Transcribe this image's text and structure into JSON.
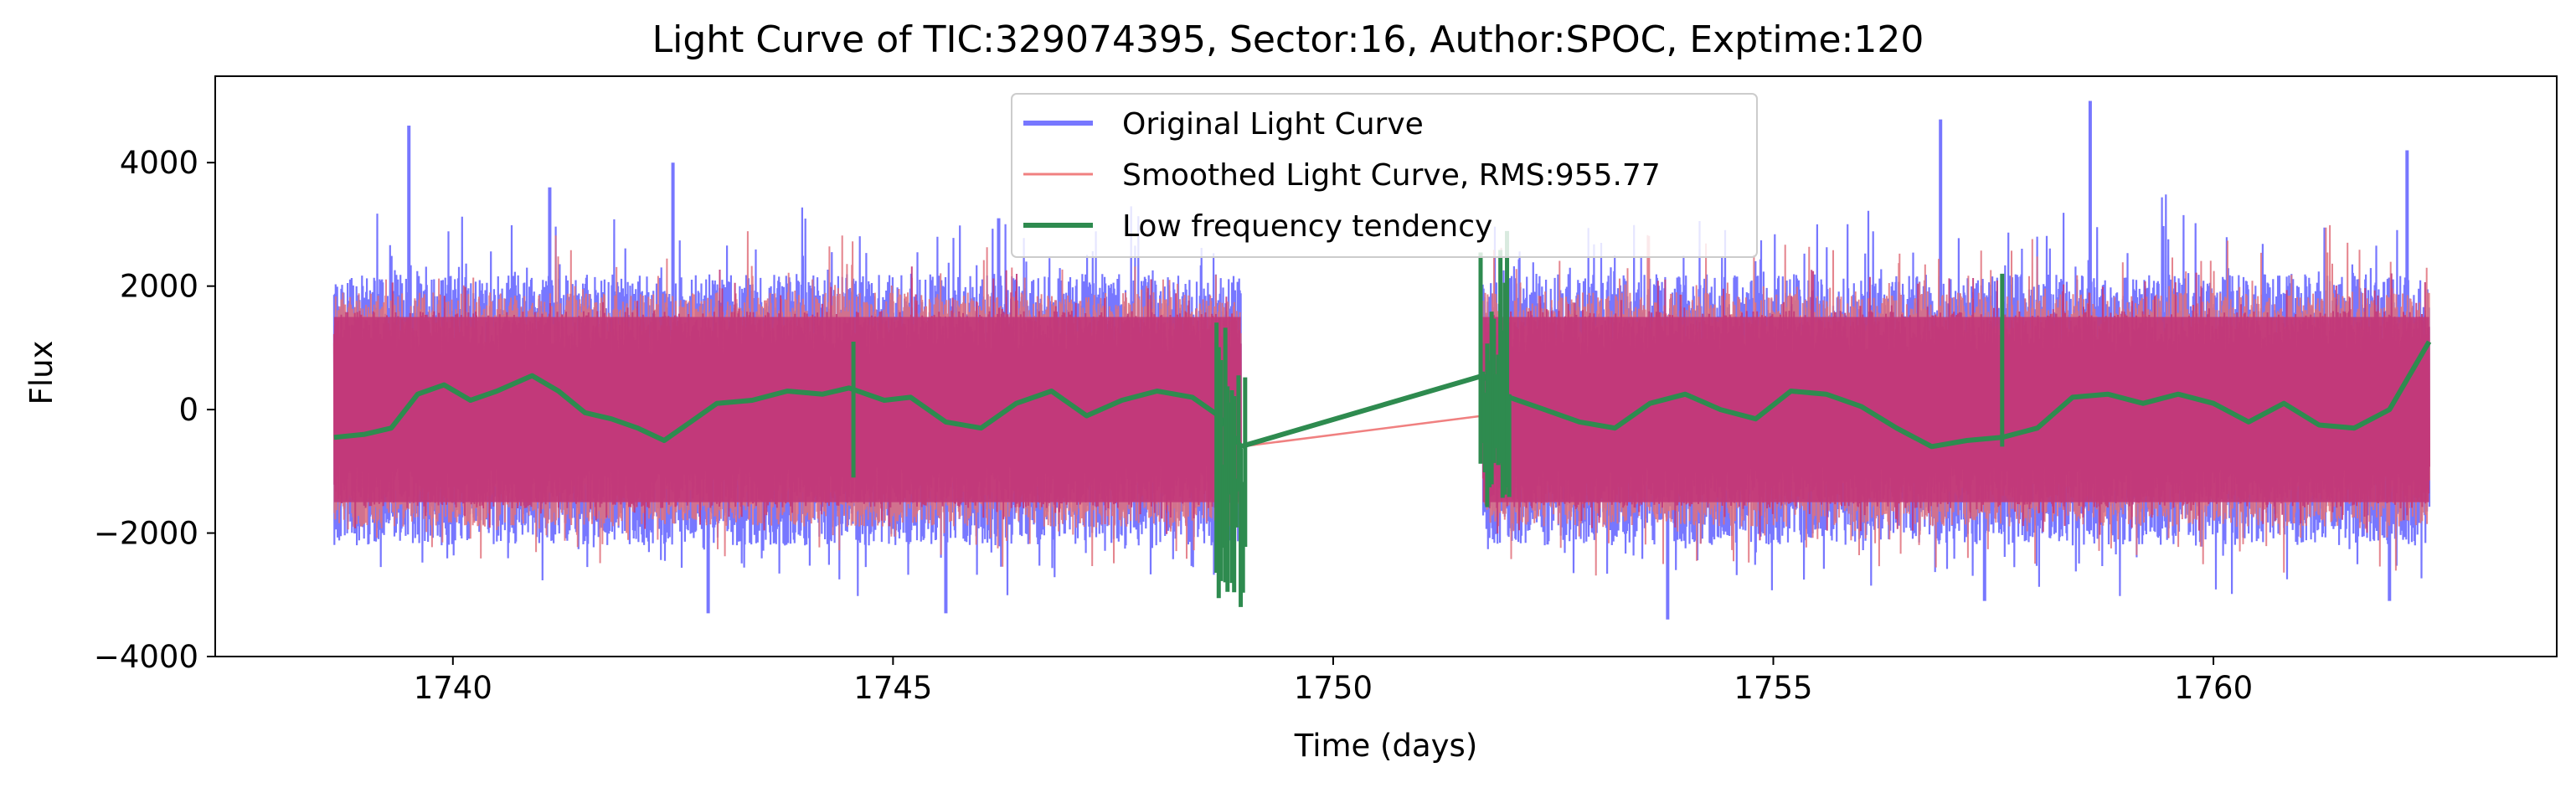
{
  "chart_data": {
    "type": "line",
    "title": "Light Curve of TIC:329074395, Sector:16, Author:SPOC, Exptime:120",
    "xlabel": "Time (days)",
    "ylabel": "Flux",
    "xlim": [
      1737.3,
      1763.9
    ],
    "ylim": [
      -4000,
      5400
    ],
    "x_ticks": [
      1740,
      1745,
      1750,
      1755,
      1760
    ],
    "y_ticks": [
      -4000,
      -2000,
      0,
      2000,
      4000
    ],
    "grid": false,
    "legend_placement": "top-center",
    "segments": [
      [
        1738.65,
        1748.95
      ],
      [
        1751.7,
        1762.45
      ]
    ],
    "series": [
      {
        "name": "Original Light Curve",
        "color": "#7777ff",
        "kind": "noisy-band",
        "center": 0,
        "envelope_low": -2200,
        "envelope_high": 2200,
        "peaks": [
          {
            "x": 1739.5,
            "y": 4600
          },
          {
            "x": 1741.1,
            "y": 3600
          },
          {
            "x": 1742.5,
            "y": 4000
          },
          {
            "x": 1746.2,
            "y": 3100
          },
          {
            "x": 1756.9,
            "y": 4700
          },
          {
            "x": 1758.6,
            "y": 5000
          },
          {
            "x": 1762.2,
            "y": 4200
          }
        ],
        "troughs": [
          {
            "x": 1742.9,
            "y": -3300
          },
          {
            "x": 1745.6,
            "y": -3300
          },
          {
            "x": 1753.8,
            "y": -3400
          },
          {
            "x": 1757.4,
            "y": -3100
          },
          {
            "x": 1762.0,
            "y": -3100
          }
        ]
      },
      {
        "name": "Smoothed Light Curve, RMS:955.77",
        "color": "#f08080",
        "kind": "noisy-band",
        "gap_line": [
          {
            "x": 1748.95,
            "y": -600
          },
          {
            "x": 1751.7,
            "y": -100
          }
        ]
      },
      {
        "name": "Low frequency tendency",
        "color": "#2e8b4f",
        "kind": "trend",
        "points": [
          [
            1738.65,
            -450
          ],
          [
            1739.0,
            -400
          ],
          [
            1739.3,
            -300
          ],
          [
            1739.6,
            250
          ],
          [
            1739.9,
            400
          ],
          [
            1740.2,
            150
          ],
          [
            1740.5,
            300
          ],
          [
            1740.9,
            550
          ],
          [
            1741.2,
            300
          ],
          [
            1741.5,
            -50
          ],
          [
            1741.8,
            -150
          ],
          [
            1742.1,
            -300
          ],
          [
            1742.4,
            -500
          ],
          [
            1742.7,
            -200
          ],
          [
            1743.0,
            100
          ],
          [
            1743.4,
            150
          ],
          [
            1743.8,
            300
          ],
          [
            1744.2,
            250
          ],
          [
            1744.5,
            350
          ],
          [
            1744.9,
            150
          ],
          [
            1745.2,
            200
          ],
          [
            1745.6,
            -200
          ],
          [
            1746.0,
            -300
          ],
          [
            1746.4,
            100
          ],
          [
            1746.8,
            300
          ],
          [
            1747.2,
            -100
          ],
          [
            1747.6,
            150
          ],
          [
            1748.0,
            300
          ],
          [
            1748.4,
            200
          ],
          [
            1748.7,
            -100
          ],
          [
            1748.95,
            -600
          ],
          [
            1751.7,
            550
          ],
          [
            1752.0,
            200
          ],
          [
            1752.4,
            0
          ],
          [
            1752.8,
            -200
          ],
          [
            1753.2,
            -300
          ],
          [
            1753.6,
            100
          ],
          [
            1754.0,
            250
          ],
          [
            1754.4,
            0
          ],
          [
            1754.8,
            -150
          ],
          [
            1755.2,
            300
          ],
          [
            1755.6,
            250
          ],
          [
            1756.0,
            50
          ],
          [
            1756.4,
            -300
          ],
          [
            1756.8,
            -600
          ],
          [
            1757.2,
            -500
          ],
          [
            1757.6,
            -450
          ],
          [
            1758.0,
            -300
          ],
          [
            1758.4,
            200
          ],
          [
            1758.8,
            250
          ],
          [
            1759.2,
            100
          ],
          [
            1759.6,
            250
          ],
          [
            1760.0,
            100
          ],
          [
            1760.4,
            -200
          ],
          [
            1760.8,
            100
          ],
          [
            1761.2,
            -250
          ],
          [
            1761.6,
            -300
          ],
          [
            1762.0,
            0
          ],
          [
            1762.45,
            1100
          ]
        ],
        "spikes": [
          {
            "x": 1744.55,
            "high": 1100,
            "low": -1100
          },
          {
            "x": 1748.85,
            "high": 2300,
            "low": -3200
          },
          {
            "x": 1751.85,
            "high": 3300,
            "low": -1600
          },
          {
            "x": 1757.6,
            "high": 2200,
            "low": -600
          }
        ]
      }
    ]
  }
}
